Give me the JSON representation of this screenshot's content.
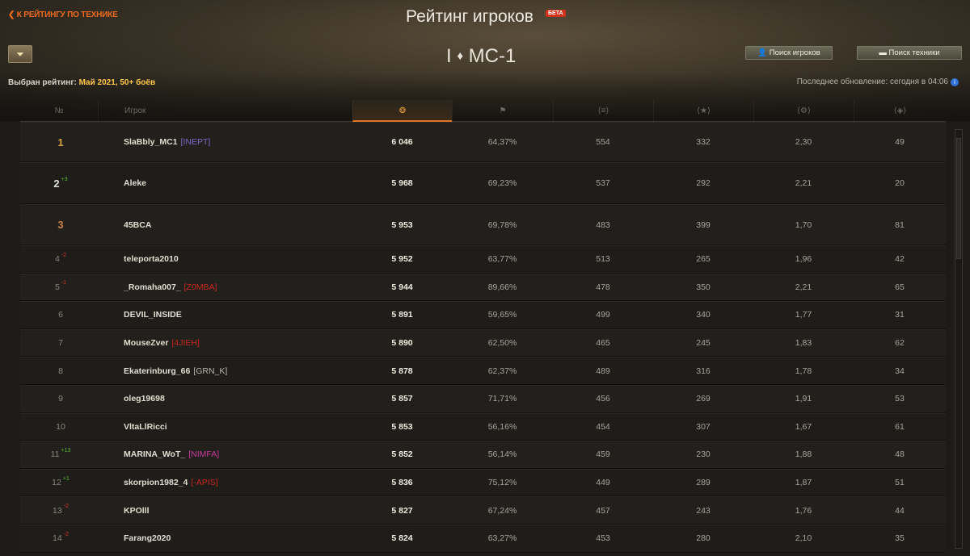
{
  "header": {
    "back_link": "К РЕЙТИНГУ ПО ТЕХНИКЕ",
    "title": "Рейтинг игроков",
    "beta_badge": "БЕТА",
    "tank_tier": "I",
    "tank_name": "МС-1",
    "selected_label": "Выбран рейтинг:",
    "selected_value": "Май 2021, 50+ боёв",
    "search_players": "Поиск игроков",
    "search_vehicles": "Поиск техники",
    "last_update": "Последнее обновление: сегодня в 04:06",
    "info_icon": "i",
    "filter_icon": "funnel-icon"
  },
  "columns": [
    {
      "label": "№"
    },
    {
      "label": "Игрок"
    },
    {
      "icon": "rating-laurel-icon",
      "active": true
    },
    {
      "icon": "flag-icon"
    },
    {
      "icon": "battles-icon"
    },
    {
      "icon": "star-icon"
    },
    {
      "icon": "damage-icon"
    },
    {
      "icon": "spot-icon"
    }
  ],
  "colors": {
    "accent": "#f26a1b",
    "highlight": "#ffc84a",
    "gain": "#5cb832",
    "loss": "#d8342a"
  },
  "rows": [
    {
      "rank": "1",
      "change": "",
      "player": "SlaBbly_MC1",
      "clan": "[INEPT]",
      "clan_color": "#7a6ac8",
      "rating": "6 046",
      "c1": "64,37%",
      "c2": "554",
      "c3": "332",
      "c4": "2,30",
      "c5": "49"
    },
    {
      "rank": "2",
      "change": "+3",
      "player": "Aleke",
      "clan": "",
      "clan_color": "",
      "rating": "5 968",
      "c1": "69,23%",
      "c2": "537",
      "c3": "292",
      "c4": "2,21",
      "c5": "20"
    },
    {
      "rank": "3",
      "change": "",
      "player": "45BCA",
      "clan": "",
      "clan_color": "",
      "rating": "5 953",
      "c1": "69,78%",
      "c2": "483",
      "c3": "399",
      "c4": "1,70",
      "c5": "81"
    },
    {
      "rank": "4",
      "change": "-2",
      "player": "teleporta2010",
      "clan": "",
      "clan_color": "",
      "rating": "5 952",
      "c1": "63,77%",
      "c2": "513",
      "c3": "265",
      "c4": "1,96",
      "c5": "42"
    },
    {
      "rank": "5",
      "change": "-1",
      "player": "_Romaha007_",
      "clan": "[Z0MBA]",
      "clan_color": "#c8281e",
      "rating": "5 944",
      "c1": "89,66%",
      "c2": "478",
      "c3": "350",
      "c4": "2,21",
      "c5": "65"
    },
    {
      "rank": "6",
      "change": "",
      "player": "DEVIL_INSIDE",
      "clan": "",
      "clan_color": "",
      "rating": "5 891",
      "c1": "59,65%",
      "c2": "499",
      "c3": "340",
      "c4": "1,77",
      "c5": "31"
    },
    {
      "rank": "7",
      "change": "",
      "player": "MouseZver",
      "clan": "[4JIEH]",
      "clan_color": "#c8281e",
      "rating": "5 890",
      "c1": "62,50%",
      "c2": "465",
      "c3": "245",
      "c4": "1,83",
      "c5": "62"
    },
    {
      "rank": "8",
      "change": "",
      "player": "Ekaterinburg_66",
      "clan": "[GRN_K]",
      "clan_color": "#b8b4aa",
      "rating": "5 878",
      "c1": "62,37%",
      "c2": "489",
      "c3": "316",
      "c4": "1,78",
      "c5": "34"
    },
    {
      "rank": "9",
      "change": "",
      "player": "oleg19698",
      "clan": "",
      "clan_color": "",
      "rating": "5 857",
      "c1": "71,71%",
      "c2": "456",
      "c3": "269",
      "c4": "1,91",
      "c5": "53"
    },
    {
      "rank": "10",
      "change": "",
      "player": "VltaLlRicci",
      "clan": "",
      "clan_color": "",
      "rating": "5 853",
      "c1": "56,16%",
      "c2": "454",
      "c3": "307",
      "c4": "1,67",
      "c5": "61"
    },
    {
      "rank": "11",
      "change": "+13",
      "player": "MARINA_WoT_",
      "clan": "[NIMFA]",
      "clan_color": "#c83a9a",
      "rating": "5 852",
      "c1": "56,14%",
      "c2": "459",
      "c3": "230",
      "c4": "1,88",
      "c5": "48"
    },
    {
      "rank": "12",
      "change": "+1",
      "player": "skorpion1982_4",
      "clan": "[-APIS]",
      "clan_color": "#c8281e",
      "rating": "5 836",
      "c1": "75,12%",
      "c2": "449",
      "c3": "289",
      "c4": "1,87",
      "c5": "51"
    },
    {
      "rank": "13",
      "change": "-2",
      "player": "KPOlll",
      "clan": "",
      "clan_color": "",
      "rating": "5 827",
      "c1": "67,24%",
      "c2": "457",
      "c3": "243",
      "c4": "1,76",
      "c5": "44"
    },
    {
      "rank": "14",
      "change": "-2",
      "player": "Farang2020",
      "clan": "",
      "clan_color": "",
      "rating": "5 824",
      "c1": "63,27%",
      "c2": "453",
      "c3": "280",
      "c4": "2,10",
      "c5": "35"
    }
  ]
}
